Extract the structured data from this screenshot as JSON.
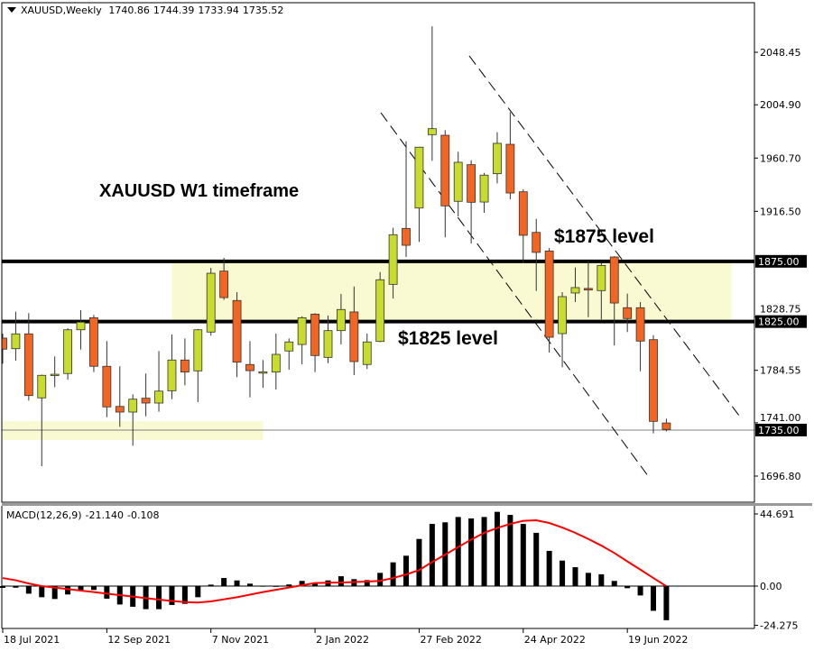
{
  "header": {
    "symbol_timeframe": "XAUUSD,Weekly",
    "open": "1740.86",
    "high": "1744.39",
    "low": "1733.94",
    "close": "1735.52"
  },
  "annotations": {
    "title": "XAUUSD W1 timeframe",
    "level_upper": "$1875 level",
    "level_lower": "$1825 level"
  },
  "colors": {
    "bull": "#c8dc2d",
    "bear": "#f36523",
    "zone": "#f9f9d2",
    "signal": "#ff0000",
    "histogram": "#000000"
  },
  "chart_data": [
    {
      "type": "candlestick",
      "pane": "price",
      "period": "weekly",
      "first_bar_date": "18 Jul 2021",
      "ylim": [
        1680,
        2075
      ],
      "y_ticks": [
        "2048.45",
        "2004.90",
        "1960.70",
        "1916.50",
        "1828.75",
        "1784.55",
        "1741.00",
        "1696.80"
      ],
      "x_ticks": [
        {
          "bar": 0,
          "label": "18 Jul 2021"
        },
        {
          "bar": 8,
          "label": "12 Sep 2021"
        },
        {
          "bar": 16,
          "label": "7 Nov 2021"
        },
        {
          "bar": 24,
          "label": "2 Jan 2022"
        },
        {
          "bar": 32,
          "label": "27 Feb 2022"
        },
        {
          "bar": 40,
          "label": "24 Apr 2022"
        },
        {
          "bar": 48,
          "label": "19 Jun 2022"
        }
      ],
      "ohlc": [
        [
          1811.3,
          1815.0,
          1790.0,
          1802.1
        ],
        [
          1802.5,
          1833.2,
          1792.6,
          1814.8
        ],
        [
          1814.8,
          1832.0,
          1759.4,
          1763.6
        ],
        [
          1761.7,
          1781.0,
          1705.0,
          1780.4
        ],
        [
          1780.3,
          1796.1,
          1770.6,
          1781.3
        ],
        [
          1781.9,
          1819.5,
          1776.8,
          1818.2
        ],
        [
          1818.2,
          1834.5,
          1801.8,
          1824.5
        ],
        [
          1828.2,
          1830.5,
          1783.1,
          1787.9
        ],
        [
          1787.9,
          1808.8,
          1745.7,
          1754.2
        ],
        [
          1754.6,
          1787.9,
          1737.7,
          1749.9
        ],
        [
          1749.9,
          1764.6,
          1722.0,
          1760.6
        ],
        [
          1761.4,
          1781.9,
          1746.4,
          1757.4
        ],
        [
          1757.4,
          1800.6,
          1750.2,
          1767.3
        ],
        [
          1767.6,
          1814.3,
          1760.6,
          1793.1
        ],
        [
          1793.1,
          1811.0,
          1772.1,
          1783.1
        ],
        [
          1784.1,
          1818.8,
          1758.2,
          1818.2
        ],
        [
          1816.3,
          1869.6,
          1813.3,
          1865.1
        ],
        [
          1866.9,
          1877.9,
          1843.0,
          1844.9
        ],
        [
          1842.5,
          1849.4,
          1778.9,
          1791.3
        ],
        [
          1789.4,
          1808.8,
          1762.1,
          1784.3
        ],
        [
          1782.9,
          1793.1,
          1770.1,
          1783.3
        ],
        [
          1783.1,
          1815.0,
          1768.6,
          1797.8
        ],
        [
          1800.6,
          1811.0,
          1785.1,
          1808.1
        ],
        [
          1806.0,
          1829.4,
          1789.6,
          1828.2
        ],
        [
          1831.2,
          1832.0,
          1783.1,
          1796.8
        ],
        [
          1795.3,
          1830.0,
          1790.5,
          1817.5
        ],
        [
          1817.5,
          1847.9,
          1806.0,
          1835.0
        ],
        [
          1833.0,
          1854.1,
          1780.6,
          1791.8
        ],
        [
          1789.4,
          1815.0,
          1785.6,
          1808.1
        ],
        [
          1808.5,
          1866.1,
          1807.9,
          1859.7
        ],
        [
          1855.9,
          1902.8,
          1844.2,
          1897.1
        ],
        [
          1902.3,
          1974.6,
          1878.6,
          1888.3
        ],
        [
          1919.2,
          1970.0,
          1891.1,
          1969.7
        ],
        [
          1980.1,
          2070.1,
          1958.4,
          1985.1
        ],
        [
          1979.6,
          1983.9,
          1894.9,
          1921.0
        ],
        [
          1924.8,
          1965.9,
          1912.3,
          1957.2
        ],
        [
          1955.2,
          1958.9,
          1889.8,
          1924.0
        ],
        [
          1924.2,
          1948.4,
          1915.3,
          1946.5
        ],
        [
          1947.7,
          1982.1,
          1939.7,
          1972.9
        ],
        [
          1972.1,
          1998.8,
          1926.5,
          1931.7
        ],
        [
          1932.7,
          1934.7,
          1873.4,
          1896.6
        ],
        [
          1899.0,
          1910.3,
          1850.4,
          1882.4
        ],
        [
          1883.6,
          1886.0,
          1799.3,
          1812.0
        ],
        [
          1815.0,
          1849.4,
          1787.1,
          1845.7
        ],
        [
          1848.7,
          1869.9,
          1841.2,
          1853.2
        ],
        [
          1852.5,
          1874.9,
          1828.7,
          1851.2
        ],
        [
          1850.7,
          1873.6,
          1826.8,
          1871.6
        ],
        [
          1878.6,
          1879.3,
          1805.1,
          1840.4
        ],
        [
          1836.5,
          1848.2,
          1816.3,
          1827.5
        ],
        [
          1836.5,
          1841.2,
          1783.8,
          1808.8
        ],
        [
          1810.0,
          1813.7,
          1732.2,
          1742.2
        ],
        [
          1740.86,
          1744.39,
          1733.94,
          1735.52
        ]
      ],
      "horizontal_lines": [
        {
          "price": 1875.0,
          "label": "1875.00",
          "style": "thick"
        },
        {
          "price": 1825.0,
          "label": "1825.00",
          "style": "thick"
        },
        {
          "price": 1735.0,
          "label": "1735.00",
          "style": "thin"
        }
      ],
      "zones": [
        {
          "from_bar": 13,
          "to_bar": 56,
          "low": 1825,
          "high": 1875
        },
        {
          "from_bar": 0,
          "to_bar": 20,
          "low": 1726.7,
          "high": 1742.4
        }
      ],
      "trendlines": [
        {
          "bar1": 35.85,
          "price1": 2045.5,
          "bar2": 56.8,
          "price2": 1743.9,
          "style": "dashed"
        },
        {
          "bar1": 29.06,
          "price1": 1998.3,
          "bar2": 49.7,
          "price2": 1695.3,
          "style": "dashed"
        }
      ]
    },
    {
      "type": "bar+line",
      "pane": "indicator",
      "label": "MACD(12,26,9)",
      "macd_value": "-21.140",
      "signal_value": "-0.108",
      "ylim": [
        -26,
        48
      ],
      "y_ticks": [
        "44.691",
        "0.00",
        "-24.275"
      ],
      "histogram": [
        -1.1,
        -1.0,
        -4.7,
        -6.9,
        -8.0,
        -5.2,
        -2.4,
        -2.4,
        -7.8,
        -11.4,
        -12.8,
        -14.3,
        -14.3,
        -11.7,
        -11.0,
        -6.9,
        0.9,
        5.0,
        3.5,
        1.5,
        0.2,
        0.1,
        1.0,
        3.2,
        2.0,
        3.5,
        6.1,
        4.3,
        3.7,
        8.2,
        14.7,
        18.8,
        29.2,
        38.5,
        39.5,
        42.8,
        41.9,
        42.8,
        46.0,
        44.1,
        38.5,
        33.0,
        21.8,
        15.8,
        11.7,
        8.2,
        7.3,
        3.2,
        -1.3,
        -5.8,
        -15.3,
        -21.14
      ],
      "signal": [
        5.0,
        3.6,
        1.6,
        0,
        -0.9,
        -1.9,
        -2.8,
        -3.7,
        -4.7,
        -5.6,
        -6.5,
        -7.5,
        -8.4,
        -9.2,
        -9.9,
        -10.2,
        -9.5,
        -8.2,
        -6.9,
        -5.3,
        -3.7,
        -2.3,
        -0.9,
        0.5,
        1.9,
        2.1,
        2.2,
        2.5,
        2.8,
        3.2,
        5.0,
        7.2,
        9.9,
        14.9,
        19.5,
        24.2,
        28.8,
        33.0,
        36.0,
        38.5,
        40.4,
        40.8,
        39.1,
        36.3,
        33.0,
        29.2,
        25.1,
        20.5,
        15.3,
        10.2,
        5.0,
        -0.108
      ]
    }
  ]
}
